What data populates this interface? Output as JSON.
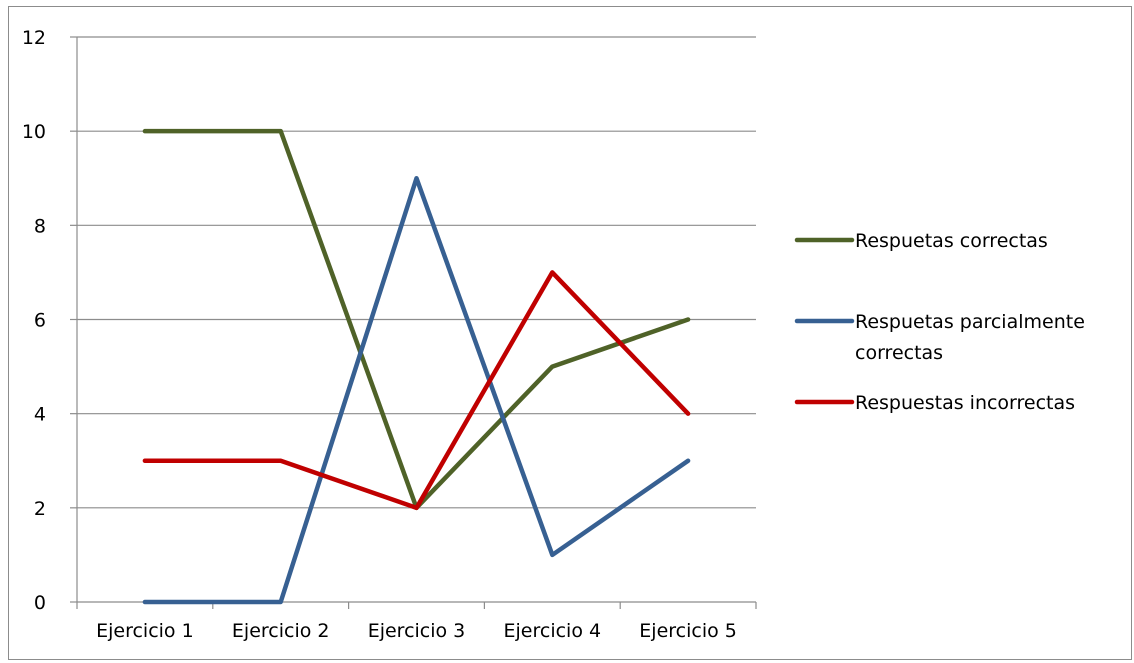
{
  "chart_data": {
    "type": "line",
    "title": "",
    "xlabel": "",
    "ylabel": "",
    "categories": [
      "Ejercicio 1",
      "Ejercicio 2",
      "Ejercicio 3",
      "Ejercicio 4",
      "Ejercicio 5"
    ],
    "ylim": [
      0,
      12
    ],
    "yticks": [
      0,
      2,
      4,
      6,
      8,
      10,
      12
    ],
    "grid": "horizontal",
    "legend_position": "right",
    "series": [
      {
        "name": "Respuetas correctas",
        "color": "#4f6228",
        "values": [
          10,
          10,
          2,
          5,
          6
        ]
      },
      {
        "name": "Respuetas parcialmente correctas",
        "legend_lines": [
          "Respuetas parcialmente",
          "correctas"
        ],
        "color": "#376092",
        "values": [
          0,
          0,
          9,
          1,
          3
        ]
      },
      {
        "name": "Respuestas incorrectas",
        "color": "#c00000",
        "values": [
          3,
          3,
          2,
          7,
          4
        ]
      }
    ]
  }
}
